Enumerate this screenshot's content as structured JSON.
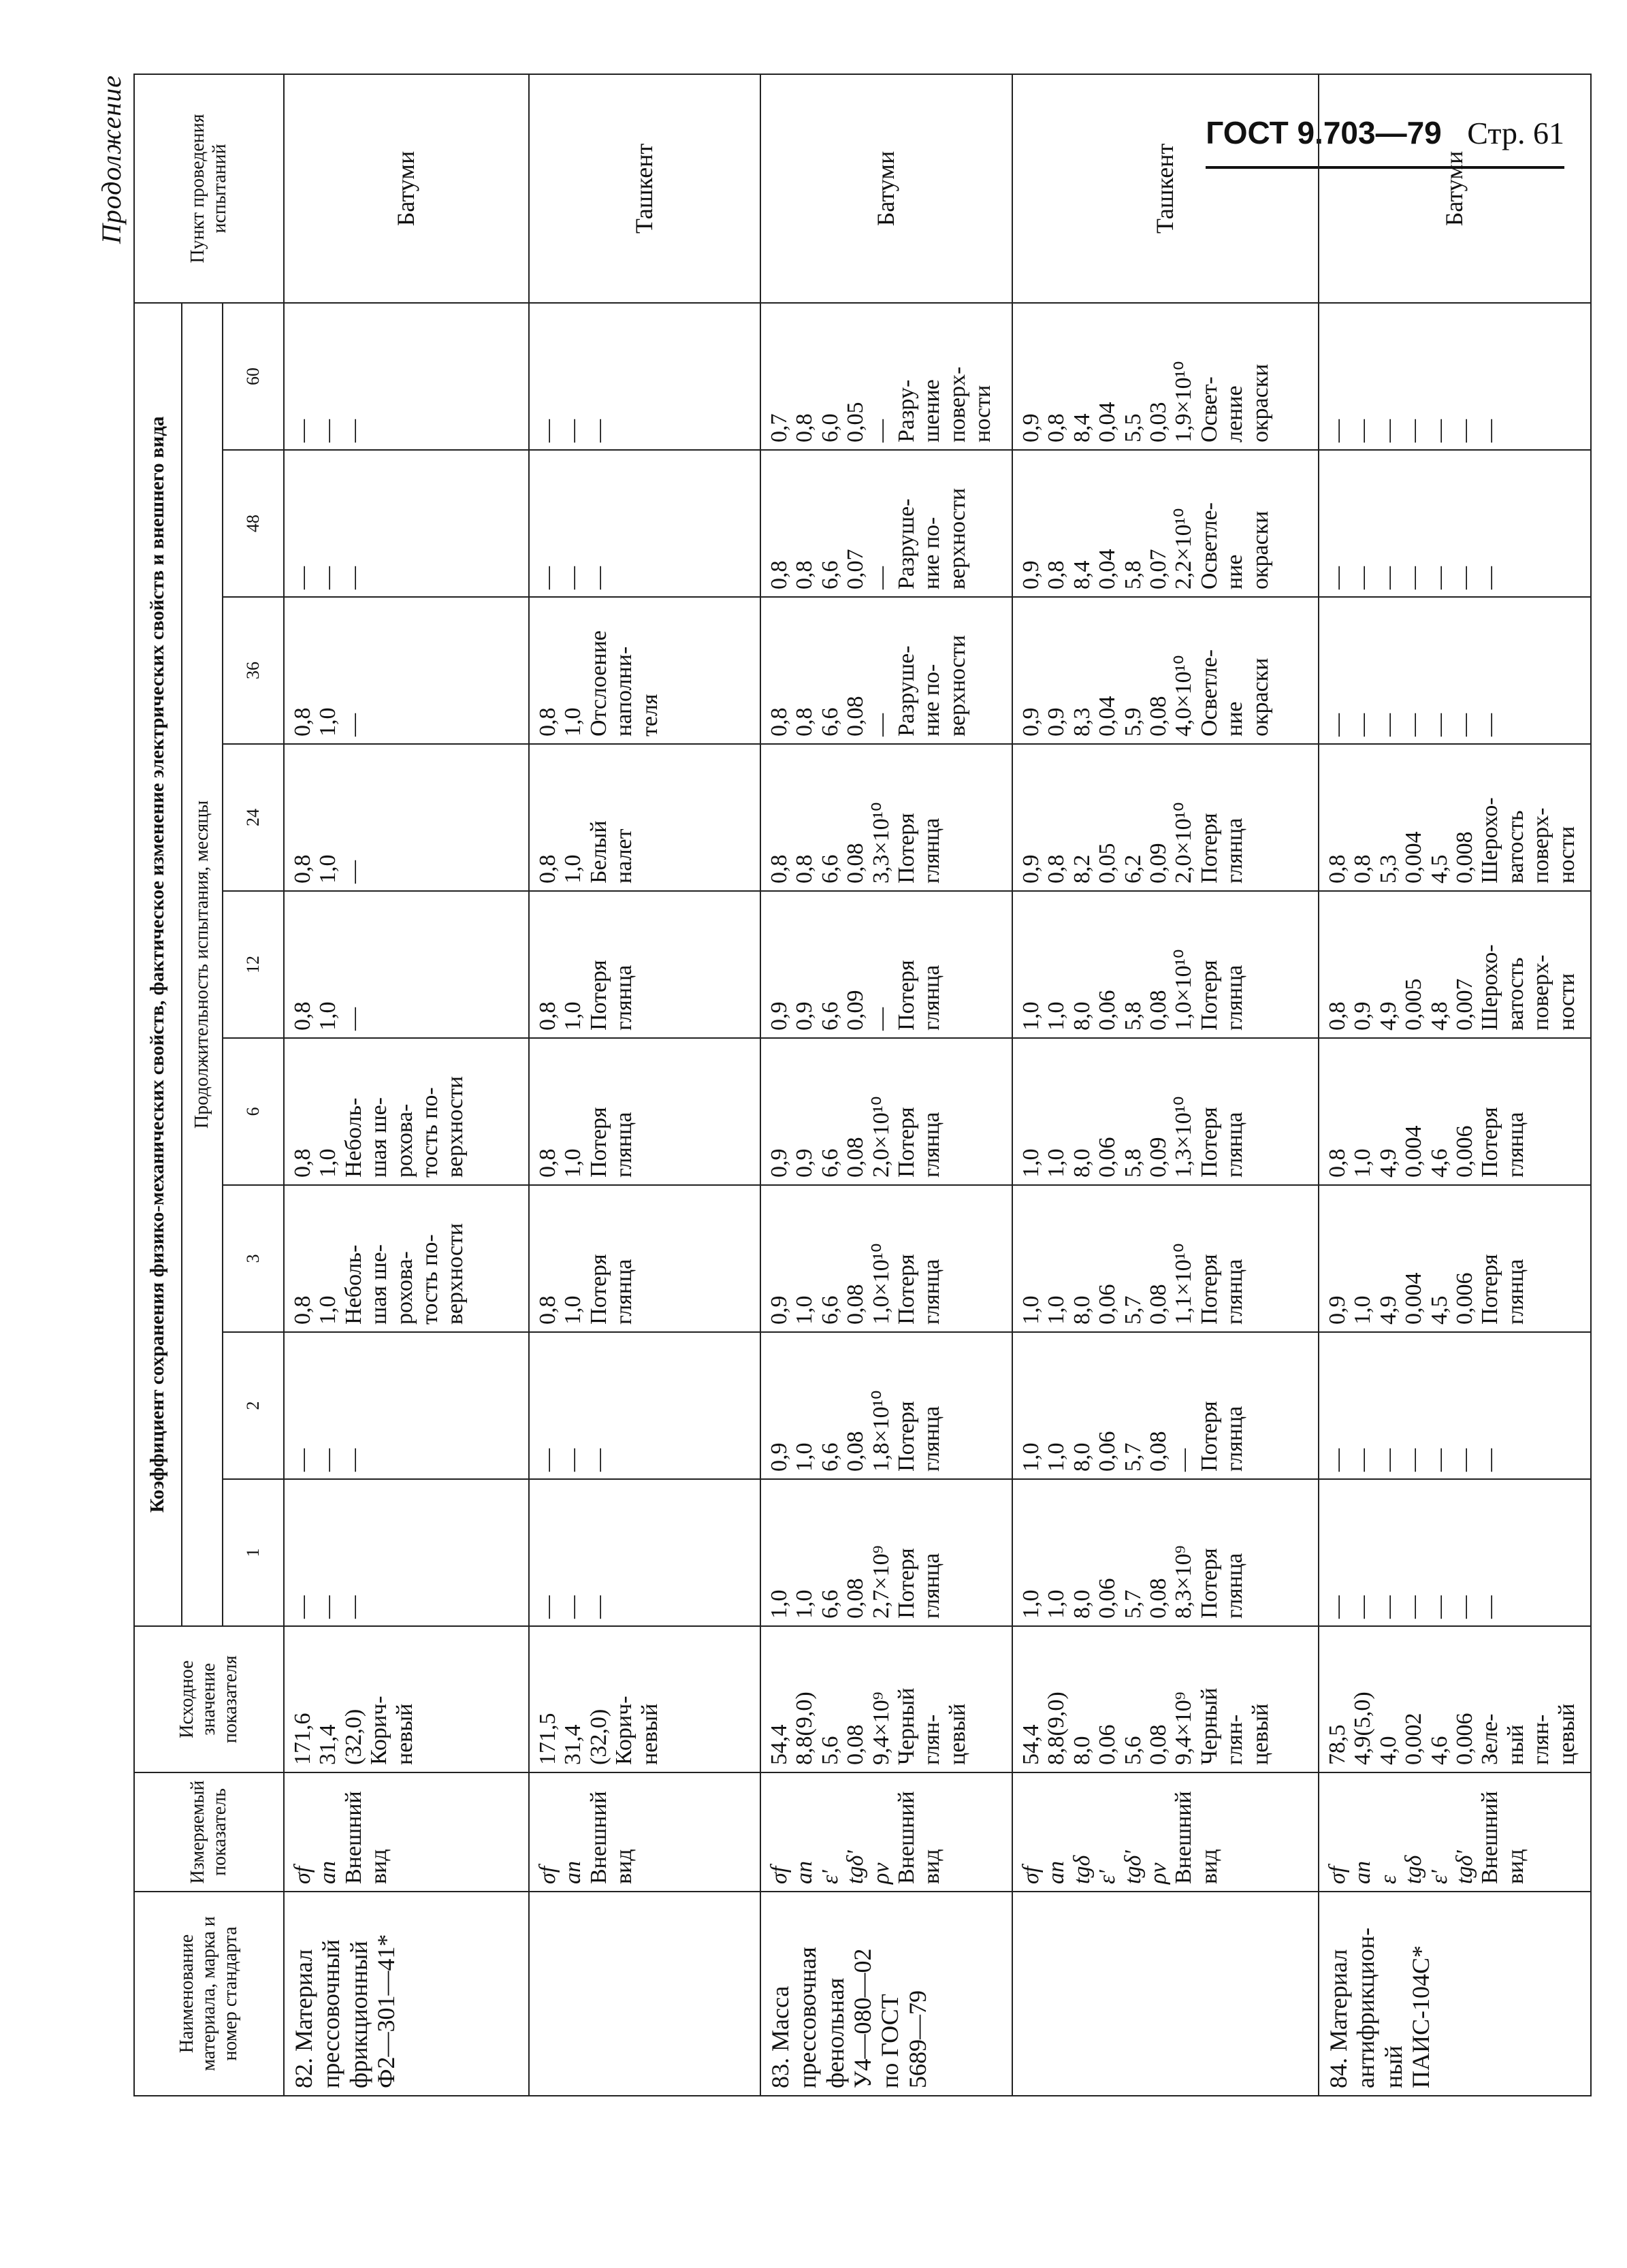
{
  "header": {
    "gost": "ГОСТ 9.703—79",
    "page": "Стр. 61"
  },
  "continuation": "Продолжение",
  "columns": {
    "material": "Наименование материала, марка и номер стандарта",
    "indicator": "Измеряемый показатель",
    "initial": "Исходное значение показателя",
    "coef": "Коэффициент сохранения физико-механических свойств, фактическое изменение электрических свойств и внешнего вида",
    "duration": "Продолжительность испытания, месяцы",
    "months": [
      "1",
      "2",
      "3",
      "6",
      "12",
      "24",
      "36",
      "48",
      "60"
    ],
    "site": "Пункт проведения испытаний"
  },
  "rows": [
    {
      "material": [
        "82. Материал",
        "прессовочный",
        "фрикционный",
        "Ф2—301—41*"
      ],
      "indicator": [
        "σf",
        "an",
        "Внешний",
        "вид"
      ],
      "initial": [
        "171,6",
        "31,4",
        "(32,0)",
        "Корич-",
        "невый"
      ],
      "values": [
        [
          "—",
          "—",
          "—"
        ],
        [
          "—",
          "—",
          "—"
        ],
        [
          "0,8",
          "1,0",
          "Неболь-",
          "шая ше-",
          "рохова-",
          "тость по-",
          "верхности"
        ],
        [
          "0,8",
          "1,0",
          "Неболь-",
          "шая ше-",
          "роховa-",
          "тость по-",
          "верхности"
        ],
        [
          "0,8",
          "1,0",
          "—"
        ],
        [
          "0,8",
          "1,0",
          "—"
        ],
        [
          "0,8",
          "1,0",
          "—"
        ],
        [
          "—",
          "—",
          "—"
        ],
        [
          "—",
          "—",
          "—"
        ]
      ],
      "site": "Батуми"
    },
    {
      "material": [],
      "indicator": [
        "σf",
        "an",
        "Внешний",
        "вид"
      ],
      "initial": [
        "171,5",
        "31,4",
        "(32,0)",
        "Корич-",
        "невый"
      ],
      "values": [
        [
          "—",
          "—",
          "—"
        ],
        [
          "—",
          "—",
          "—"
        ],
        [
          "0,8",
          "1,0",
          "Потеря",
          "глянца"
        ],
        [
          "0,8",
          "1,0",
          "Потеря",
          "глянца"
        ],
        [
          "0,8",
          "1,0",
          "Потеря",
          "глянца"
        ],
        [
          "0,8",
          "1,0",
          "Белый",
          "налет"
        ],
        [
          "0,8",
          "1,0",
          "Отслоение",
          "наполни-",
          "теля"
        ],
        [
          "—",
          "—",
          "—"
        ],
        [
          "—",
          "—",
          "—"
        ]
      ],
      "site": "Ташкент"
    },
    {
      "material": [
        "83. Масса",
        "прессовочная",
        "фенольная",
        "У4—080—02",
        "по ГОСТ",
        "5689—79"
      ],
      "indicator": [
        "σf",
        "an",
        "ε'",
        "tgδ'",
        "ρv",
        "Внешний",
        "вид"
      ],
      "initial": [
        "54,4",
        "8,8(9,0)",
        "5,6",
        "0,08",
        "9,4×10⁹",
        "Черный",
        "глян-",
        "цевый"
      ],
      "values": [
        [
          "1,0",
          "1,0",
          "6,6",
          "0,08",
          "2,7×10⁹",
          "Потеря",
          "глянца"
        ],
        [
          "0,9",
          "1,0",
          "6,6",
          "0,08",
          "1,8×10¹⁰",
          "Потеря",
          "глянца"
        ],
        [
          "0,9",
          "1,0",
          "6,6",
          "0,08",
          "1,0×10¹⁰",
          "Потеря",
          "глянца"
        ],
        [
          "0,9",
          "0,9",
          "6,6",
          "0,08",
          "2,0×10¹⁰",
          "Потеря",
          "глянца"
        ],
        [
          "0,9",
          "0,9",
          "6,6",
          "0,09",
          "—",
          "Потеря",
          "глянца"
        ],
        [
          "0,8",
          "0,8",
          "6,6",
          "0,08",
          "3,3×10¹⁰",
          "Потеря",
          "глянца"
        ],
        [
          "0,8",
          "0,8",
          "6,6",
          "0,08",
          "—",
          "Разруше-",
          "ние по-",
          "верхности"
        ],
        [
          "0,8",
          "0,8",
          "6,6",
          "0,07",
          "—",
          "Разруше-",
          "ние по-",
          "верхности"
        ],
        [
          "0,7",
          "0,8",
          "6,0",
          "0,05",
          "—",
          "Разру-",
          "шение",
          "поверх-",
          "ности"
        ]
      ],
      "site": "Батуми"
    },
    {
      "material": [],
      "indicator": [
        "σf",
        "an",
        "tgδ",
        "ε'",
        "tgδ'",
        "ρv",
        "Внешний",
        "вид"
      ],
      "initial": [
        "54,4",
        "8,8(9,0)",
        "8,0",
        "0,06",
        "5,6",
        "0,08",
        "9,4×10⁹",
        "Черный",
        "глян-",
        "цевый"
      ],
      "values": [
        [
          "1,0",
          "1,0",
          "8,0",
          "0,06",
          "5,7",
          "0,08",
          "8,3×10⁹",
          "Потеря",
          "глянца"
        ],
        [
          "1,0",
          "1,0",
          "8,0",
          "0,06",
          "5,7",
          "0,08",
          "—",
          "Потеря",
          "глянца"
        ],
        [
          "1,0",
          "1,0",
          "8,0",
          "0,06",
          "5,7",
          "0,08",
          "1,1×10¹⁰",
          "Потеря",
          "глянца"
        ],
        [
          "1,0",
          "1,0",
          "8,0",
          "0,06",
          "5,8",
          "0,09",
          "1,3×10¹⁰",
          "Потеря",
          "глянца"
        ],
        [
          "1,0",
          "1,0",
          "8,0",
          "0,06",
          "5,8",
          "0,08",
          "1,0×10¹⁰",
          "Потеря",
          "глянца"
        ],
        [
          "0,9",
          "0,8",
          "8,2",
          "0,05",
          "6,2",
          "0,09",
          "2,0×10¹⁰",
          "Потеря",
          "глянца"
        ],
        [
          "0,9",
          "0,9",
          "8,3",
          "0,04",
          "5,9",
          "0,08",
          "4,0×10¹⁰",
          "Осветле-",
          "ние",
          "окраски"
        ],
        [
          "0,9",
          "0,8",
          "8,4",
          "0,04",
          "5,8",
          "0,07",
          "2,2×10¹⁰",
          "Осветле-",
          "ние",
          "окраски"
        ],
        [
          "0,9",
          "0,8",
          "8,4",
          "0,04",
          "5,5",
          "0,03",
          "1,9×10¹⁰",
          "Освет-",
          "ление",
          "окраски"
        ]
      ],
      "site": "Ташкент"
    },
    {
      "material": [
        "84. Материал",
        "антифрикцион-",
        "ный",
        "ПАИС-104С*"
      ],
      "indicator": [
        "σf",
        "an",
        "ε",
        "tgδ",
        "ε'",
        "tgδ'",
        "Внешний",
        "вид"
      ],
      "initial": [
        "78,5",
        "4,9(5,0)",
        "4,0",
        "0,002",
        "4,6",
        "0,006",
        "Зеле-",
        "ный",
        "глян-",
        "цевый"
      ],
      "values": [
        [
          "—",
          "—",
          "—",
          "—",
          "—",
          "—",
          "—"
        ],
        [
          "—",
          "—",
          "—",
          "—",
          "—",
          "—",
          "—"
        ],
        [
          "0,9",
          "1,0",
          "4,9",
          "0,004",
          "4,5",
          "0,006",
          "Потеря",
          "глянца"
        ],
        [
          "0,8",
          "1,0",
          "4,9",
          "0,004",
          "4,6",
          "0,006",
          "Потеря",
          "глянца"
        ],
        [
          "0,8",
          "0,9",
          "4,9",
          "0,005",
          "4,8",
          "0,007",
          "Шерохо-",
          "ватость",
          "поверх-",
          "ности"
        ],
        [
          "0,8",
          "0,8",
          "5,3",
          "0,004",
          "4,5",
          "0,008",
          "Шерохо-",
          "ватость",
          "поверх-",
          "ности"
        ],
        [
          "—",
          "—",
          "—",
          "—",
          "—",
          "—",
          "—"
        ],
        [
          "—",
          "—",
          "—",
          "—",
          "—",
          "—",
          "—"
        ],
        [
          "—",
          "—",
          "—",
          "—",
          "—",
          "—",
          "—"
        ]
      ],
      "site": "Батуми"
    }
  ]
}
